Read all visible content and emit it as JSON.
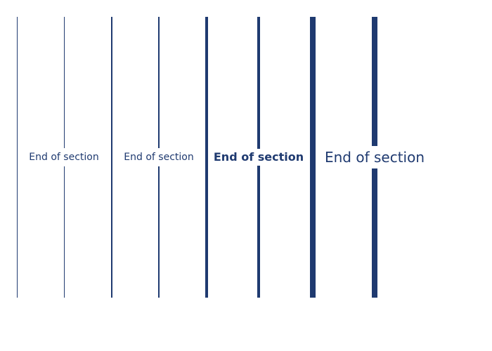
{
  "colors": {
    "line": "#1f3a70",
    "label": "#1f3a70"
  },
  "dividers": [
    {
      "label": "End of section",
      "weight": "thin"
    },
    {
      "label": "End of section",
      "weight": "medium"
    },
    {
      "label": "End of section",
      "weight": "bold"
    },
    {
      "label": "End of section",
      "weight": "heavy"
    }
  ]
}
